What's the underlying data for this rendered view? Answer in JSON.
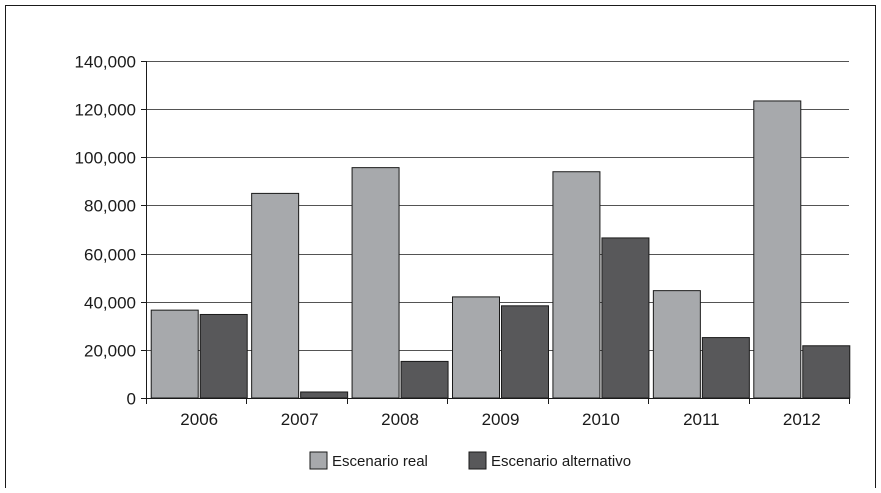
{
  "chart_data": {
    "type": "bar",
    "title": "",
    "xlabel": "",
    "ylabel": "",
    "categories": [
      "2006",
      "2007",
      "2008",
      "2009",
      "2010",
      "2011",
      "2012"
    ],
    "series": [
      {
        "name": "Escenario real",
        "color": "#a7a9ac",
        "values": [
          36500,
          85000,
          95700,
          42000,
          94000,
          44600,
          123400
        ]
      },
      {
        "name": "Escenario alternativo",
        "color": "#58585a",
        "values": [
          34700,
          2500,
          15200,
          38300,
          66500,
          25100,
          21700
        ]
      }
    ],
    "ylim": [
      0,
      140000
    ],
    "yticks": [
      0,
      20000,
      40000,
      60000,
      80000,
      100000,
      120000,
      140000
    ],
    "ytick_labels": [
      "0",
      "20,000",
      "40,000",
      "60,000",
      "80,000",
      "100,000",
      "120,000",
      "140,000"
    ],
    "grid": true,
    "legend_position": "bottom"
  }
}
